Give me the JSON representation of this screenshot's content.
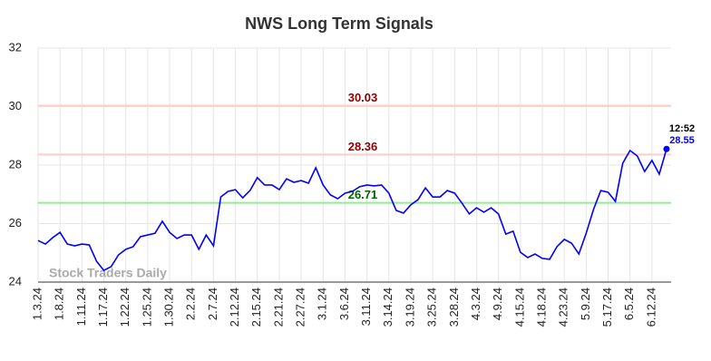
{
  "chart_data": {
    "type": "line",
    "title": "NWS Long Term Signals",
    "watermark": "Stock Traders Daily",
    "categories": [
      "1.3.24",
      null,
      null,
      "1.8.24",
      null,
      null,
      "1.11.24",
      null,
      null,
      "1.17.24",
      null,
      null,
      "1.22.24",
      null,
      null,
      "1.25.24",
      null,
      null,
      "1.30.24",
      null,
      null,
      "2.2.24",
      null,
      null,
      "2.7.24",
      null,
      null,
      "2.12.24",
      null,
      null,
      "2.15.24",
      null,
      null,
      "2.21.24",
      null,
      null,
      "2.27.24",
      null,
      null,
      "3.1.24",
      null,
      null,
      "3.6.24",
      null,
      null,
      "3.11.24",
      null,
      null,
      "3.14.24",
      null,
      null,
      "3.19.24",
      null,
      null,
      "3.25.24",
      null,
      null,
      "3.28.24",
      null,
      null,
      "4.3.24",
      null,
      null,
      "4.9.24",
      null,
      null,
      "4.15.24",
      null,
      null,
      "4.18.24",
      null,
      null,
      "4.23.24",
      null,
      null,
      "5.9.24",
      null,
      null,
      "5.17.24",
      null,
      null,
      "6.5.24",
      null,
      null,
      "6.12.24",
      null,
      null
    ],
    "values": [
      25.42,
      25.3,
      25.52,
      25.7,
      25.3,
      25.24,
      25.3,
      25.27,
      24.71,
      24.4,
      24.53,
      24.93,
      25.12,
      25.21,
      25.55,
      25.61,
      25.67,
      26.08,
      25.7,
      25.49,
      25.61,
      25.61,
      25.12,
      25.61,
      25.24,
      26.91,
      27.1,
      27.16,
      26.88,
      27.13,
      27.57,
      27.32,
      27.32,
      27.16,
      27.53,
      27.41,
      27.47,
      27.38,
      27.91,
      27.32,
      26.98,
      26.85,
      27.04,
      27.1,
      27.26,
      27.32,
      27.29,
      27.32,
      27.04,
      26.45,
      26.36,
      26.64,
      26.82,
      27.22,
      26.91,
      26.91,
      27.13,
      27.04,
      26.7,
      26.33,
      26.54,
      26.39,
      26.54,
      26.33,
      25.64,
      25.74,
      25.02,
      24.84,
      24.96,
      24.81,
      24.78,
      25.21,
      25.46,
      25.33,
      24.96,
      25.67,
      26.48,
      27.13,
      27.07,
      26.76,
      28.06,
      28.5,
      28.31,
      27.78,
      28.16,
      27.69,
      28.55
    ],
    "color": "#0000ff",
    "last_time_label": "12:52",
    "hlines": [
      {
        "value": 30.03,
        "color": "#ffcccc",
        "label_color": "#8b0000"
      },
      {
        "value": 28.36,
        "color": "#ffcccc",
        "label_color": "#8b0000"
      },
      {
        "value": 26.71,
        "color": "#90ee90",
        "label_color": "#006400"
      }
    ],
    "ylim": [
      24,
      32
    ],
    "yticks": [
      24,
      26,
      28,
      30,
      32
    ],
    "grid": true
  }
}
